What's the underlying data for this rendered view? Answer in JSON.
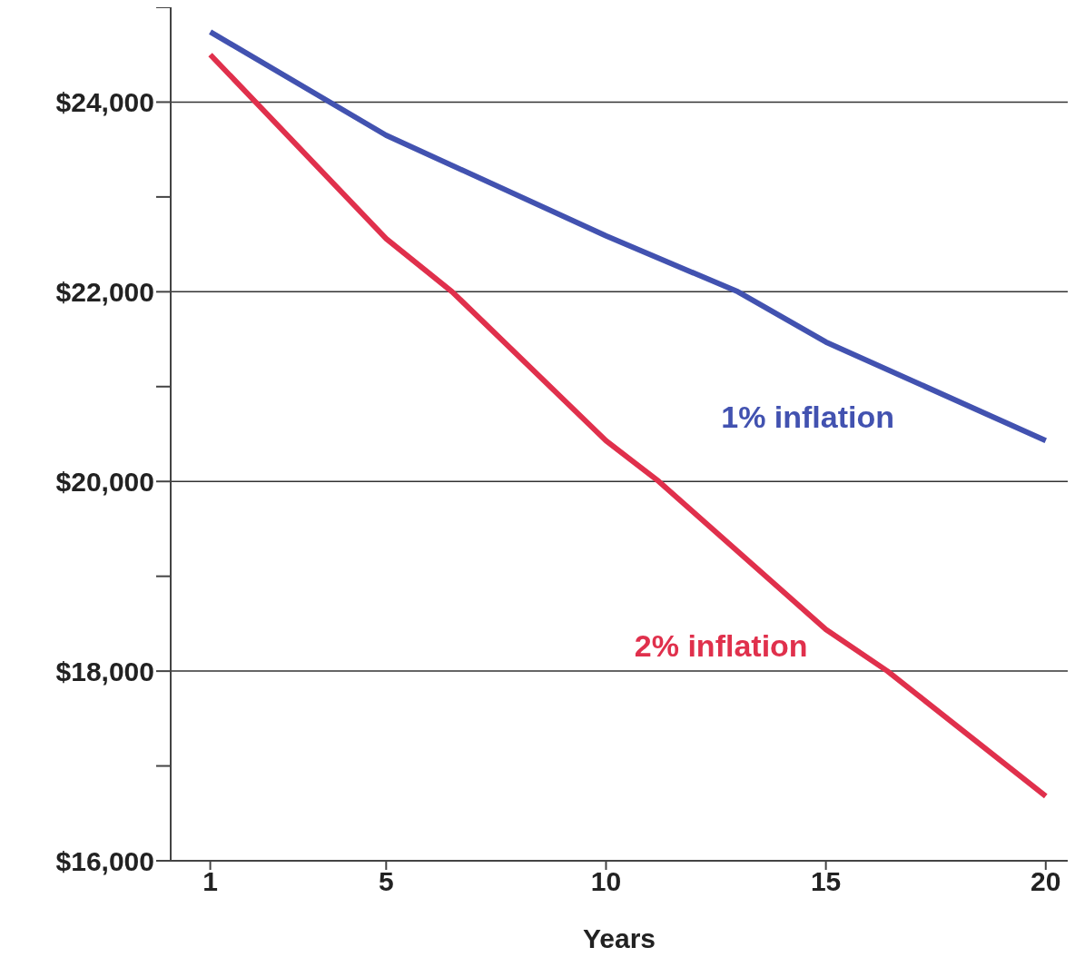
{
  "chart_data": {
    "type": "line",
    "xlabel": "Years",
    "series": [
      {
        "name": "1% inflation",
        "color": "#4252b0",
        "x": [
          1,
          5,
          10,
          13,
          15,
          20
        ],
        "values": [
          24740,
          23650,
          22590,
          22000,
          21470,
          20430
        ]
      },
      {
        "name": "2% inflation",
        "color": "#e0304c",
        "x": [
          1,
          5,
          6.5,
          10,
          11.2,
          15,
          16.4,
          20
        ],
        "values": [
          24500,
          22560,
          22000,
          20430,
          20000,
          18440,
          18000,
          16680
        ]
      }
    ],
    "xlim": [
      0.1,
      20.5
    ],
    "xticks": [
      1,
      5,
      10,
      15,
      20
    ],
    "ylim": [
      16000,
      25000
    ],
    "yticks": [
      {
        "value": 16000,
        "label": "$16,000"
      },
      {
        "value": 17000,
        "label": null
      },
      {
        "value": 18000,
        "label": "$18,000"
      },
      {
        "value": 19000,
        "label": null
      },
      {
        "value": 20000,
        "label": "$20,000"
      },
      {
        "value": 21000,
        "label": null
      },
      {
        "value": 22000,
        "label": "$22,000"
      },
      {
        "value": 23000,
        "label": null
      },
      {
        "value": 24000,
        "label": "$24,000"
      },
      {
        "value": 25000,
        "label": null
      }
    ],
    "grid": "y",
    "legend": false,
    "marker": "none",
    "line_style": "solid"
  }
}
